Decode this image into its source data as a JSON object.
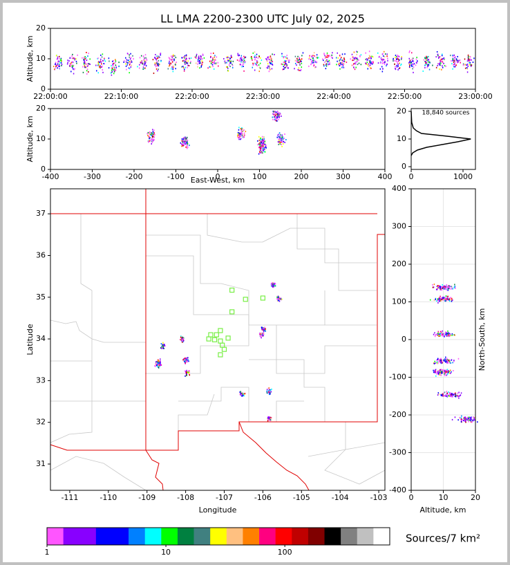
{
  "chart_data": [
    {
      "type": "scatter",
      "title": "LL LMA 2200-2300 UTC July 02, 2025",
      "ylabel": "Altitude, km",
      "xlim": [
        0,
        60
      ],
      "ylim": [
        0,
        20
      ],
      "xticks": [
        {
          "value": 0,
          "label": "22:00:00"
        },
        {
          "value": 10,
          "label": "22:10:00"
        },
        {
          "value": 20,
          "label": "22:20:00"
        },
        {
          "value": 30,
          "label": "22:30:00"
        },
        {
          "value": 40,
          "label": "22:40:00"
        },
        {
          "value": 50,
          "label": "22:50:00"
        },
        {
          "value": 60,
          "label": "23:00:00"
        }
      ],
      "yticks": [
        0,
        10,
        20
      ],
      "series": [
        {
          "x": [
            1,
            3,
            5,
            7,
            9,
            11,
            13,
            15,
            17,
            19,
            21,
            23,
            25,
            27,
            29,
            31,
            33,
            35,
            37,
            39,
            41,
            43,
            45,
            47,
            49,
            51,
            53,
            55,
            57,
            59
          ],
          "y": [
            9,
            9,
            9,
            8.5,
            8,
            9,
            9,
            9,
            9,
            9.5,
            9.5,
            9.5,
            9,
            9.5,
            9.5,
            9,
            9,
            9,
            9.5,
            9.5,
            9.5,
            9.5,
            9.5,
            9.5,
            9,
            9,
            9,
            9.5,
            9.5,
            9
          ]
        }
      ]
    },
    {
      "type": "scatter",
      "xlabel": "East-West, km",
      "ylabel": "Altitude, km",
      "xlim": [
        -400,
        400
      ],
      "ylim": [
        0,
        20
      ],
      "xticks": [
        -400,
        -300,
        -200,
        -100,
        0,
        100,
        200,
        300,
        400
      ],
      "yticks": [
        0,
        10,
        20
      ],
      "series": [
        {
          "x": [
            -80,
            -160,
            55,
            105,
            140,
            150,
            105
          ],
          "y": [
            9,
            11,
            12,
            9,
            18,
            10,
            7
          ]
        }
      ]
    },
    {
      "type": "line",
      "annotation": "18,840 sources",
      "xlim": [
        0,
        1240
      ],
      "ylim": [
        -1,
        21
      ],
      "xticks": [
        0,
        1000
      ],
      "yticks": [
        0,
        10,
        20
      ],
      "series": [
        {
          "color": "#000000",
          "x": [
            0,
            30,
            120,
            300,
            600,
            900,
            1150,
            700,
            200,
            100,
            40,
            10,
            0
          ],
          "y": [
            4,
            5,
            6,
            7,
            8,
            9,
            10,
            11,
            12,
            13,
            14,
            16,
            20
          ]
        }
      ]
    },
    {
      "type": "scatter",
      "xlabel": "Longitude",
      "ylabel": "Latitude",
      "xlim": [
        -111.5,
        -102.84
      ],
      "ylim": [
        30.37,
        37.6
      ],
      "xticks": [
        -111,
        -110,
        -109,
        -108,
        -107,
        -106,
        -105,
        -104,
        -103
      ],
      "yticks": [
        31,
        32,
        33,
        34,
        35,
        36,
        37
      ],
      "series": [
        {
          "x": [
            -106.05,
            -106.0,
            -108.1,
            -108.0,
            -108.7,
            -107.97,
            -108.6,
            -106.55,
            -105.85,
            -105.85,
            -105.75,
            -105.6,
            -108.75
          ],
          "y": [
            34.1,
            34.25,
            34.0,
            33.5,
            33.45,
            33.2,
            33.85,
            32.7,
            32.1,
            32.75,
            35.3,
            34.97,
            33.4
          ]
        },
        {
          "color": "#77ee44",
          "marker": "square",
          "x": [
            -106.8,
            -106.45,
            -106.0,
            -106.8,
            -107.1,
            -107.2,
            -107.35,
            -107.4,
            -107.25,
            -107.1,
            -107.05,
            -107.0,
            -106.9,
            -107.1
          ],
          "y": [
            35.17,
            34.95,
            34.98,
            34.65,
            34.2,
            34.1,
            34.1,
            34.0,
            33.98,
            33.95,
            33.85,
            33.75,
            34.02,
            33.62
          ]
        }
      ]
    },
    {
      "type": "scatter",
      "xlabel": "Altitude, km",
      "ylabel": "North-South, km",
      "grid": true,
      "xlim": [
        0,
        20
      ],
      "ylim": [
        -400,
        400
      ],
      "xticks": [
        0,
        10,
        20
      ],
      "yticks": [
        -400,
        -300,
        -200,
        -100,
        0,
        100,
        200,
        300,
        400
      ],
      "series": [
        {
          "x": [
            10,
            10,
            12,
            10,
            10,
            10,
            17
          ],
          "y": [
            15,
            -55,
            -145,
            108,
            140,
            -85,
            -210
          ]
        }
      ]
    },
    {
      "type": "colorbar",
      "label": "Sources/7 km²",
      "log": true,
      "clim": [
        1,
        763
      ],
      "ticks": [
        1,
        10,
        100
      ],
      "colors": [
        "#ff55ff",
        "#8800ff",
        "#8800ff",
        "#0000ff",
        "#0000ff",
        "#0080ff",
        "#00ffff",
        "#00ff00",
        "#008040",
        "#408080",
        "#ffff00",
        "#ffc080",
        "#ff8000",
        "#ff0080",
        "#ff0000",
        "#c00000",
        "#800000",
        "#000000",
        "#808080",
        "#c0c0c0",
        "#ffffff"
      ]
    }
  ]
}
